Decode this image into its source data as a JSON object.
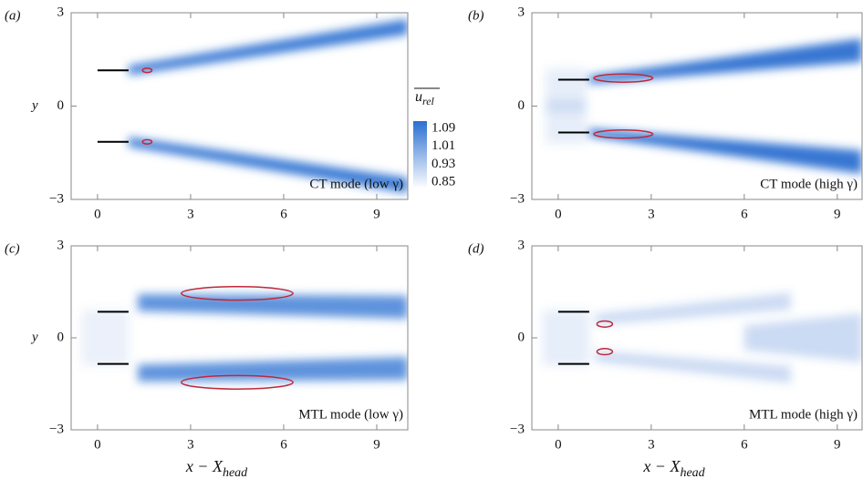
{
  "chart_data": [
    {
      "type": "contour",
      "panel_label": "(a)",
      "annotation": "CT mode (low γ)",
      "ylabel": "y",
      "xlim": [
        -0.85,
        10
      ],
      "ylim": [
        -3,
        3
      ],
      "xticks": [
        0,
        3,
        6,
        9
      ],
      "yticks": [
        {
          "value": -3,
          "label": "−3"
        },
        0,
        3
      ]
    },
    {
      "type": "contour",
      "panel_label": "(b)",
      "annotation": "CT mode (high γ)",
      "xlim": [
        -0.85,
        9.8
      ],
      "ylim": [
        -3,
        3
      ],
      "xticks": [
        0,
        3,
        6,
        9
      ],
      "yticks": [
        {
          "value": -3,
          "label": "−3"
        },
        0,
        3
      ]
    },
    {
      "type": "contour",
      "panel_label": "(c)",
      "annotation": "MTL mode (low γ)",
      "ylabel": "y",
      "xlabel": {
        "main": "x − X",
        "sub": "head"
      },
      "xlim": [
        -0.85,
        10
      ],
      "ylim": [
        -3,
        3
      ],
      "xticks": [
        0,
        3,
        6,
        9
      ],
      "yticks": [
        {
          "value": -3,
          "label": "−3"
        },
        0,
        3
      ]
    },
    {
      "type": "contour",
      "panel_label": "(d)",
      "annotation": "MTL mode (high γ)",
      "xlabel": {
        "main": "x − X",
        "sub": "head"
      },
      "xlim": [
        -0.85,
        9.8
      ],
      "ylim": [
        -3,
        3
      ],
      "xticks": [
        0,
        3,
        6,
        9
      ],
      "yticks": [
        {
          "value": -3,
          "label": "−3"
        },
        0,
        3
      ]
    }
  ],
  "colorbar": {
    "title": {
      "main": "u",
      "sub": "rel"
    },
    "clim": [
      0.85,
      1.09
    ],
    "ticks": [
      1.09,
      1.01,
      0.93,
      0.85
    ],
    "colors": [
      "#ffffff",
      "#2a6fd0"
    ]
  }
}
